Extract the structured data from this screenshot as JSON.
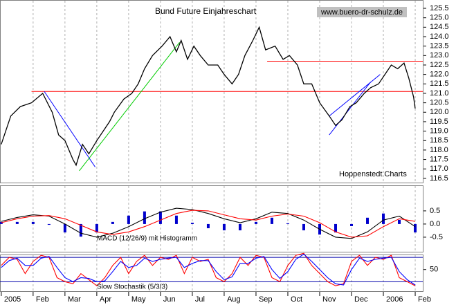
{
  "chart_data": [
    {
      "type": "line",
      "title": "Bund Future Einjahreschart",
      "source": "www.buero-dr-schulz.de",
      "annotation": "Hoppenstedt Charts",
      "x": [
        0,
        0.3,
        0.6,
        0.95,
        1.3,
        1.6,
        1.8,
        2.0,
        2.25,
        2.35,
        2.55,
        2.75,
        3.0,
        3.2,
        3.4,
        3.55,
        3.85,
        4.1,
        4.3,
        4.5,
        4.75,
        5.05,
        5.3,
        5.5,
        5.65,
        5.85,
        6.05,
        6.25,
        6.5,
        6.8,
        7.0,
        7.25,
        7.45,
        7.65,
        7.9,
        8.1,
        8.3,
        8.6,
        8.85,
        9.05,
        9.3,
        9.5,
        9.75,
        10.0,
        10.3,
        10.5,
        10.7,
        10.95,
        11.15,
        11.4,
        11.6,
        11.85,
        12.05,
        12.25,
        12.45,
        12.65,
        12.8,
        12.95,
        13.0
      ],
      "series": [
        {
          "color": "#000000",
          "values": [
            118.3,
            119.8,
            120.3,
            120.5,
            121,
            120,
            118.8,
            118.5,
            117.5,
            117.2,
            118.3,
            117.8,
            118.5,
            119,
            119.5,
            120,
            120.7,
            121,
            121.5,
            122.3,
            123,
            123.5,
            124,
            123.2,
            123.8,
            122.8,
            123.5,
            123,
            122.5,
            122.5,
            122,
            121.5,
            122,
            123,
            123.8,
            124.5,
            123.3,
            123.5,
            122.8,
            123,
            122.5,
            121.5,
            121.5,
            120.5,
            119.8,
            119.3,
            119.6,
            120.3,
            120.5,
            121,
            121.3,
            121.5,
            122,
            122.5,
            122.3,
            122.6,
            121.8,
            120.8,
            120.2
          ]
        }
      ],
      "hlines": [
        {
          "y": 121.1,
          "x0": 0.95,
          "color": "#ff0000"
        },
        {
          "y": 122.7,
          "x0": 8.35,
          "color": "#ff0000"
        }
      ],
      "trendlines": [
        {
          "x": [
            1.35,
            2.95
          ],
          "y": [
            121.1,
            117.1
          ],
          "color": "#0000ff"
        },
        {
          "x": [
            2.45,
            5.6
          ],
          "y": [
            116.9,
            123.7
          ],
          "color": "#00cc00"
        },
        {
          "x": [
            10.3,
            11.6
          ],
          "y": [
            118.8,
            121.6
          ],
          "color": "#0000ff"
        },
        {
          "x": [
            10.3,
            11.9
          ],
          "y": [
            119.8,
            122.0
          ],
          "color": "#0000ff"
        }
      ],
      "xlim": [
        -0.04,
        13.26
      ],
      "ylim": [
        116.24,
        125.94
      ],
      "yticks": [
        116.5,
        {
          "value": 117,
          "label": "117.0"
        },
        117.5,
        {
          "value": 118,
          "label": "118.0"
        },
        118.5,
        {
          "value": 119,
          "label": "119.0"
        },
        119.5,
        {
          "value": 120,
          "label": "120.0"
        },
        120.5,
        {
          "value": 121,
          "label": "121.0"
        },
        121.5,
        {
          "value": 122,
          "label": "122.0"
        },
        122.5,
        {
          "value": 123,
          "label": "123.0"
        },
        123.5,
        {
          "value": 124,
          "label": "124.0"
        },
        124.5,
        {
          "value": 125,
          "label": "125.0"
        },
        125.5
      ]
    },
    {
      "type": "macd",
      "annotation": "MACD (12/26/9) mit Histogramm",
      "x": [
        0,
        0.5,
        1,
        1.5,
        2,
        2.5,
        3,
        3.5,
        4,
        4.5,
        5,
        5.5,
        6,
        6.5,
        7,
        7.5,
        8,
        8.5,
        9,
        9.5,
        10,
        10.5,
        11,
        11.5,
        12,
        12.5,
        13
      ],
      "histogram": {
        "color": "#0000cc",
        "values": [
          0.08,
          0.08,
          0.08,
          -0.03,
          -0.32,
          -0.48,
          -0.32,
          0.08,
          0.32,
          0.48,
          0.48,
          0.32,
          0.05,
          -0.16,
          -0.24,
          -0.24,
          0.08,
          0.24,
          0.03,
          -0.24,
          -0.4,
          -0.32,
          -0.08,
          0.24,
          0.4,
          0.16,
          -0.32
        ]
      },
      "series": [
        {
          "color": "#000000",
          "values": [
            0.1,
            0.25,
            0.35,
            0.3,
            0.0,
            -0.35,
            -0.5,
            -0.35,
            -0.1,
            0.2,
            0.45,
            0.6,
            0.55,
            0.4,
            0.2,
            0.05,
            0.2,
            0.45,
            0.4,
            0.15,
            -0.2,
            -0.5,
            -0.55,
            -0.3,
            0.15,
            0.3,
            -0.1
          ]
        },
        {
          "color": "#ff0000",
          "values": [
            0.05,
            0.2,
            0.3,
            0.32,
            0.2,
            -0.05,
            -0.3,
            -0.4,
            -0.3,
            -0.1,
            0.15,
            0.4,
            0.52,
            0.5,
            0.35,
            0.2,
            0.15,
            0.3,
            0.38,
            0.3,
            0.05,
            -0.3,
            -0.5,
            -0.45,
            -0.1,
            0.2,
            0.1
          ]
        }
      ],
      "xlim": [
        -0.04,
        13.26
      ],
      "ylim": [
        -1.08,
        1.47
      ],
      "yticks": [
        0.5,
        {
          "value": 0,
          "label": "0.0"
        },
        -0.5
      ]
    },
    {
      "type": "line",
      "annotation": "Slow Stochastik (5/3/3)",
      "x": [
        0,
        0.25,
        0.5,
        0.75,
        1,
        1.25,
        1.5,
        1.75,
        2,
        2.25,
        2.5,
        2.75,
        3,
        3.25,
        3.5,
        3.75,
        4,
        4.25,
        4.5,
        4.75,
        5,
        5.25,
        5.5,
        5.75,
        6,
        6.25,
        6.5,
        6.75,
        7,
        7.25,
        7.5,
        7.75,
        8,
        8.25,
        8.5,
        8.75,
        9,
        9.25,
        9.5,
        9.75,
        10,
        10.25,
        10.5,
        10.75,
        11,
        11.25,
        11.5,
        11.75,
        12,
        12.25,
        12.5,
        12.75,
        13
      ],
      "series": [
        {
          "color": "#ff0000",
          "values": [
            60,
            80,
            75,
            40,
            70,
            85,
            80,
            30,
            20,
            15,
            40,
            25,
            10,
            30,
            60,
            80,
            40,
            70,
            85,
            60,
            80,
            75,
            85,
            40,
            80,
            70,
            75,
            30,
            20,
            40,
            80,
            60,
            85,
            80,
            30,
            20,
            60,
            85,
            90,
            60,
            40,
            20,
            10,
            15,
            70,
            85,
            60,
            80,
            75,
            85,
            30,
            20,
            10
          ]
        },
        {
          "color": "#0000ff",
          "values": [
            55,
            72,
            78,
            60,
            60,
            78,
            82,
            55,
            30,
            20,
            30,
            28,
            20,
            22,
            45,
            70,
            55,
            60,
            78,
            70,
            75,
            78,
            80,
            55,
            65,
            72,
            72,
            45,
            25,
            32,
            65,
            65,
            78,
            82,
            50,
            28,
            45,
            75,
            88,
            70,
            50,
            30,
            15,
            12,
            50,
            78,
            70,
            75,
            78,
            80,
            45,
            25,
            12
          ]
        }
      ],
      "hlines": [
        {
          "y": 80,
          "x0": -0.04,
          "color": "#0000aa"
        },
        {
          "y": 20,
          "x0": -0.04,
          "color": "#0000aa"
        }
      ],
      "xlim": [
        -0.04,
        13.26
      ],
      "ylim": [
        -5,
        87
      ],
      "yticks": [
        50
      ],
      "xticks": [
        {
          "value": 0,
          "label": "2005"
        },
        {
          "value": 1,
          "label": "Feb"
        },
        {
          "value": 2,
          "label": "Mar"
        },
        {
          "value": 3,
          "label": "Apr"
        },
        {
          "value": 4,
          "label": "May"
        },
        {
          "value": 5,
          "label": "Jun"
        },
        {
          "value": 6,
          "label": "Jul"
        },
        {
          "value": 7,
          "label": "Aug"
        },
        {
          "value": 8,
          "label": "Sep"
        },
        {
          "value": 9,
          "label": "Oct"
        },
        {
          "value": 10,
          "label": "Nov"
        },
        {
          "value": 11,
          "label": "Dec"
        },
        {
          "value": 12,
          "label": "2006"
        },
        {
          "value": 13,
          "label": "Feb"
        }
      ]
    }
  ]
}
